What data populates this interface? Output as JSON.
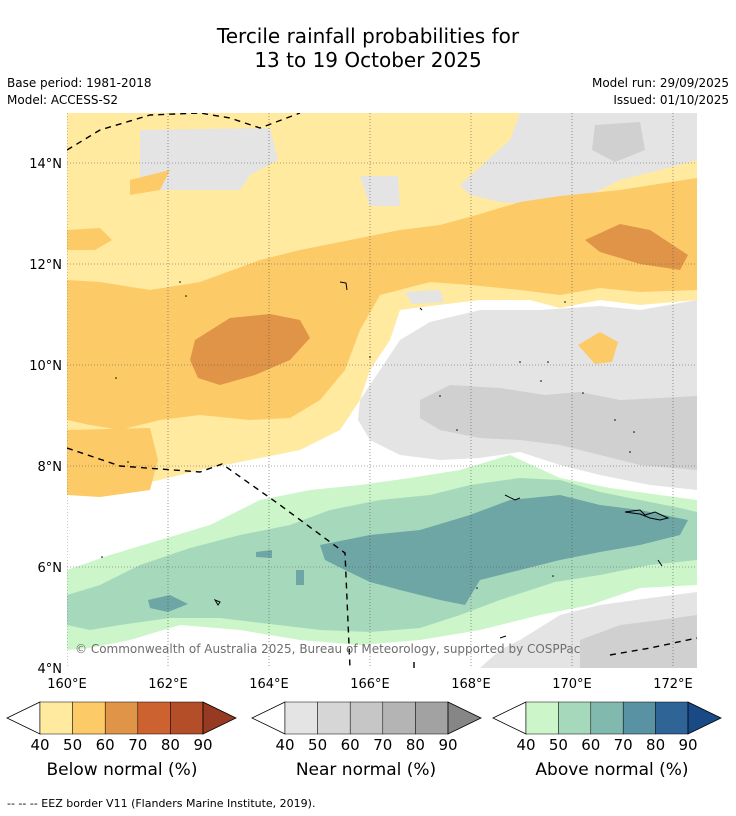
{
  "title": {
    "line1": "Tercile rainfall probabilities for",
    "line2": "13 to 19 October 2025"
  },
  "meta": {
    "base_period": "Base period: 1981-2018",
    "model": "Model: ACCESS-S2",
    "model_run": "Model run: 29/09/2025",
    "issued": "Issued: 01/10/2025"
  },
  "map": {
    "lat_labels": [
      "14°N",
      "12°N",
      "10°N",
      "8°N",
      "6°N",
      "4°N"
    ],
    "lon_labels": [
      "160°E",
      "162°E",
      "164°E",
      "166°E",
      "168°E",
      "170°E",
      "172°E"
    ],
    "copyright": "© Commonwealth of Australia 2025, Bureau of Meteorology, supported by COSPPac"
  },
  "colorbars": [
    {
      "name": "below",
      "label": "Below normal (%)",
      "ticks": [
        "40",
        "50",
        "60",
        "70",
        "80",
        "90"
      ],
      "colors": [
        "#ffeaa0",
        "#fdca68",
        "#e09448",
        "#cc6230",
        "#b34e28",
        "#963a22"
      ]
    },
    {
      "name": "near",
      "label": "Near normal (%)",
      "ticks": [
        "40",
        "50",
        "60",
        "70",
        "80",
        "90"
      ],
      "colors": [
        "#e4e4e4",
        "#d6d6d6",
        "#c6c6c6",
        "#b4b4b4",
        "#a2a2a2",
        "#868686"
      ]
    },
    {
      "name": "above",
      "label": "Above normal (%)",
      "ticks": [
        "40",
        "50",
        "60",
        "70",
        "80",
        "90"
      ],
      "colors": [
        "#ccf5c9",
        "#a6d9bc",
        "#82b9ae",
        "#5993a3",
        "#2f6497",
        "#1a4a85"
      ]
    }
  ],
  "footer": "--  --  -- EEZ border V11 (Flanders Marine Institute, 2019)."
}
